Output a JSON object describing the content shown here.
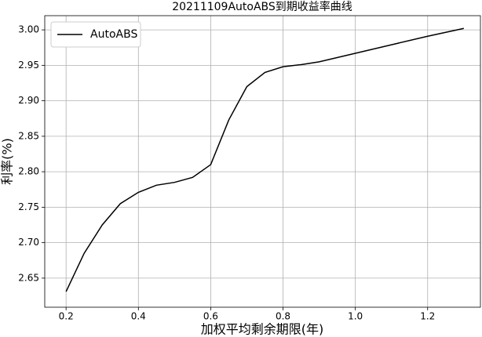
{
  "chart_data": {
    "type": "line",
    "title": "20211109AutoABS到期收益率曲线",
    "x_label": "加权平均剩余期限(年)",
    "y_label": "利率(%)",
    "x": [
      0.2,
      0.25,
      0.3,
      0.35,
      0.4,
      0.45,
      0.5,
      0.55,
      0.6,
      0.65,
      0.7,
      0.75,
      0.8,
      0.85,
      0.9,
      1.0,
      1.1,
      1.2,
      1.3
    ],
    "series": [
      {
        "name": "AutoABS",
        "color": "#000000",
        "values": [
          2.631,
          2.685,
          2.725,
          2.755,
          2.771,
          2.781,
          2.785,
          2.792,
          2.81,
          2.873,
          2.92,
          2.94,
          2.948,
          2.951,
          2.955,
          2.967,
          2.979,
          2.991,
          3.002
        ]
      }
    ],
    "xlim": [
      0.141,
      1.346
    ],
    "xticks": [
      0.2,
      0.4,
      0.6,
      0.8,
      {
        "value": 1.0,
        "label": "1.0"
      },
      1.2
    ],
    "ylim": [
      2.609,
      3.02
    ],
    "yticks": [
      2.65,
      {
        "value": 2.7,
        "label": "2.70"
      },
      2.75,
      {
        "value": 2.8,
        "label": "2.80"
      },
      2.85,
      {
        "value": 2.9,
        "label": "2.90"
      },
      2.95,
      {
        "value": 3.0,
        "label": "3.00"
      }
    ],
    "grid": true,
    "legend": "upper left"
  }
}
